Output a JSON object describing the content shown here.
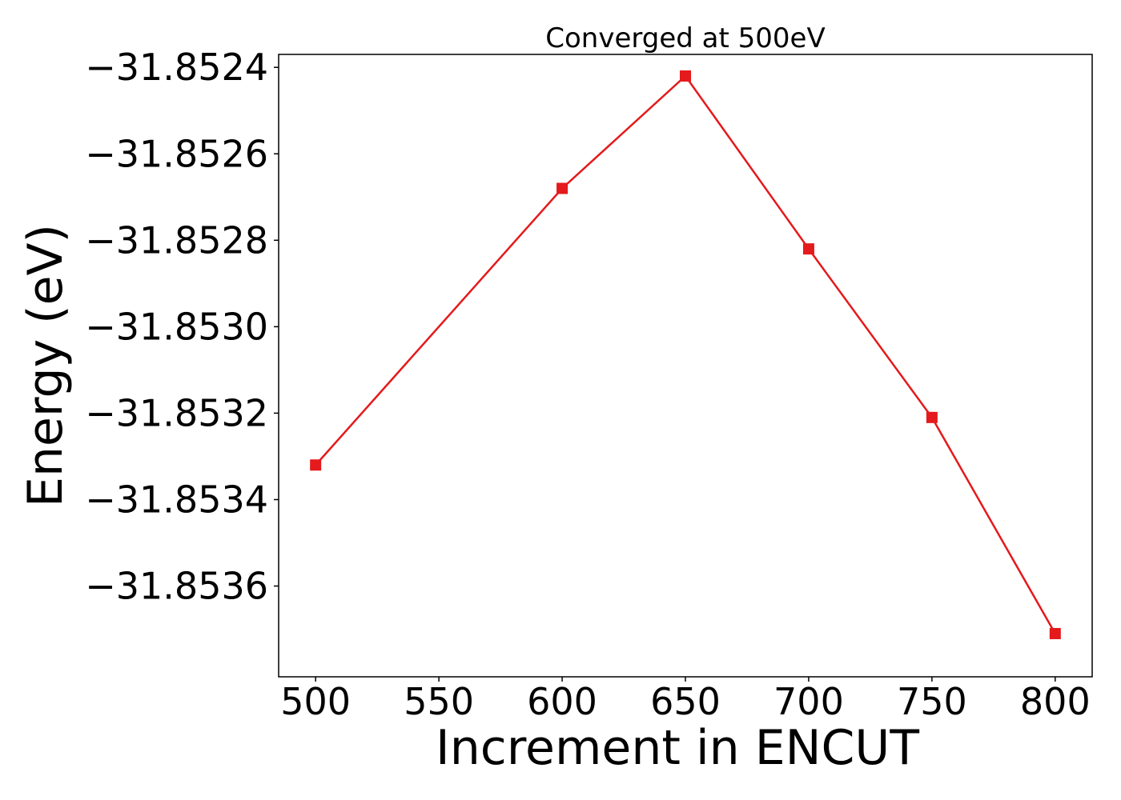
{
  "chart_data": {
    "type": "line",
    "title": "Converged at 500eV",
    "xlabel": "Increment in ENCUT",
    "ylabel": "Energy (eV)",
    "x": [
      500,
      600,
      650,
      700,
      750,
      800
    ],
    "series": [
      {
        "values": [
          -31.85332,
          -31.85268,
          -31.85242,
          -31.85282,
          -31.85321,
          -31.85371
        ],
        "color": "#e41a1c",
        "marker": "square"
      }
    ],
    "xlim": [
      485,
      815
    ],
    "ylim": [
      -31.85381,
      -31.85237
    ],
    "xticks": [
      500,
      550,
      600,
      650,
      700,
      750,
      800
    ],
    "xtick_labels": [
      "500",
      "550",
      "600",
      "650",
      "700",
      "750",
      "800"
    ],
    "yticks": [
      -31.8524,
      -31.8526,
      -31.8528,
      -31.853,
      -31.8532,
      -31.8534,
      -31.8536
    ],
    "ytick_labels": [
      "−31.8524",
      "−31.8526",
      "−31.8528",
      "−31.8530",
      "−31.8532",
      "−31.8534",
      "−31.8536"
    ],
    "grid": false,
    "legend": "none"
  }
}
